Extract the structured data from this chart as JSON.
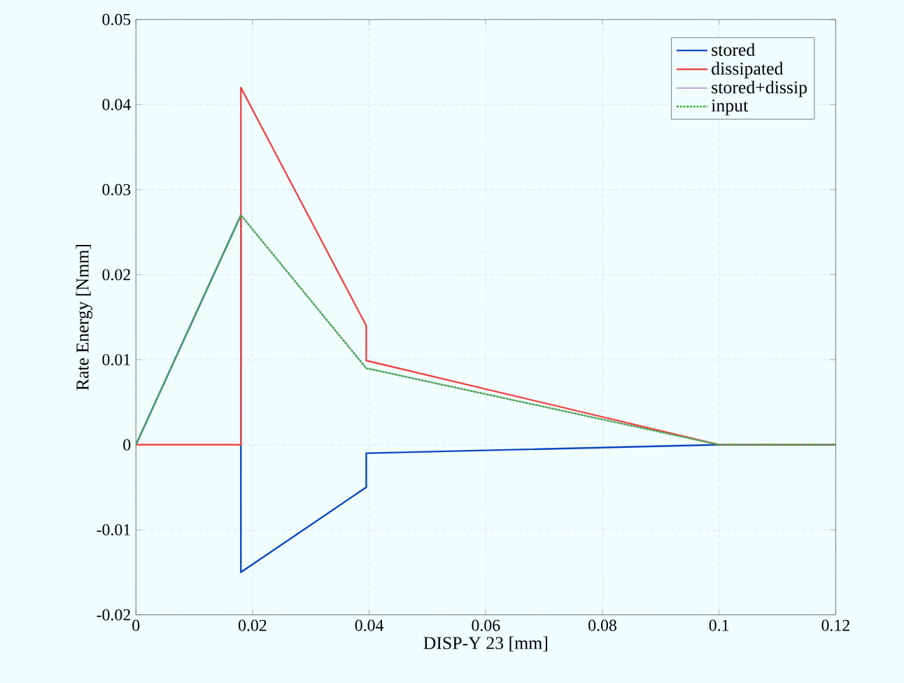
{
  "chart_data": {
    "type": "line",
    "xlabel": "DISP-Y 23 [mm]",
    "ylabel": "Rate Energy [Nmm]",
    "xlim": [
      0,
      0.12
    ],
    "ylim": [
      -0.02,
      0.05
    ],
    "xticks": [
      0,
      0.02,
      0.04,
      0.06,
      0.08,
      0.1,
      0.12
    ],
    "yticks": [
      -0.02,
      -0.01,
      0,
      0.01,
      0.02,
      0.03,
      0.04,
      0.05
    ],
    "grid": true,
    "legend": "top right",
    "series": [
      {
        "name": "stored",
        "color": "#0a46c0",
        "x": [
          0,
          0.018,
          0.018,
          0.0395,
          0.0395,
          0.1,
          0.12
        ],
        "values": [
          0,
          0.027,
          -0.015,
          -0.005,
          -0.001,
          0,
          0
        ]
      },
      {
        "name": "dissipated",
        "color": "#f04545",
        "x": [
          0,
          0.018,
          0.018,
          0.0395,
          0.0395,
          0.1,
          0.12
        ],
        "values": [
          0,
          0,
          0.042,
          0.014,
          0.0099,
          0,
          0
        ]
      },
      {
        "name": "stored+dissip",
        "color": "#a070d0",
        "x": [
          0,
          0.018,
          0.0395,
          0.1,
          0.12
        ],
        "values": [
          0,
          0.027,
          0.009,
          0,
          0
        ]
      },
      {
        "name": "input",
        "color": "#40b040",
        "line_style": "dotted",
        "x": [
          0,
          0.018,
          0.0395,
          0.1,
          0.12
        ],
        "values": [
          0,
          0.027,
          0.009,
          0,
          0
        ]
      }
    ]
  }
}
